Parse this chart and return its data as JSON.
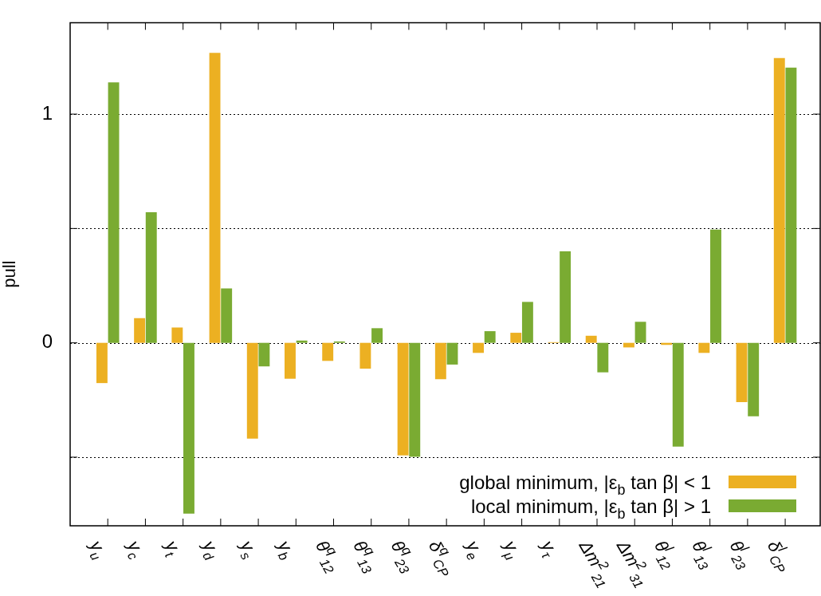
{
  "chart_data": {
    "type": "bar",
    "ylabel": "pull",
    "categories": [
      "y$_{u}$",
      "y$_{c}$",
      "y$_{t}$",
      "y$_{d}$",
      "y$_{s}$",
      "y$_{b}$",
      "θ$^{q}$$_{12}$",
      "θ$^{q}$$_{13}$",
      "θ$^{q}$$_{23}$",
      "δ$^{q}$$_{CP}$",
      "y$_{e}$",
      "y$_{μ}$",
      "y$_{τ}$",
      "Δm$^{2}$$_{21}$",
      "Δm$^{2}$$_{31}$",
      "θ$^{l}$$_{12}$",
      "θ$^{l}$$_{13}$",
      "θ$^{l}$$_{23}$",
      "δ$^{l}$$_{CP}$"
    ],
    "series": [
      {
        "name": "global minimum, |ε$_{b}$ tan β| < 1",
        "color": "#ecb022",
        "values": [
          -0.176,
          0.108,
          0.067,
          1.268,
          -0.419,
          -0.157,
          -0.079,
          -0.113,
          -0.492,
          -0.159,
          -0.044,
          0.044,
          0.003,
          0.031,
          -0.02,
          -0.009,
          -0.044,
          -0.259,
          1.245
        ]
      },
      {
        "name": "local minimum, |ε$_{b}$ tan β| > 1",
        "color": "#7aab32",
        "values": [
          1.139,
          0.571,
          -0.747,
          0.238,
          -0.103,
          0.01,
          0.006,
          0.064,
          -0.498,
          -0.095,
          0.051,
          0.179,
          0.4,
          -0.129,
          0.092,
          -0.454,
          0.495,
          -0.321,
          1.203
        ]
      }
    ],
    "ylim": [
      -0.8,
      1.4
    ],
    "yticks": [
      {
        "value": -0.5,
        "label": null
      },
      0,
      {
        "value": 0.5,
        "label": null
      },
      1
    ],
    "grid": "y",
    "legend": "bottom right"
  }
}
